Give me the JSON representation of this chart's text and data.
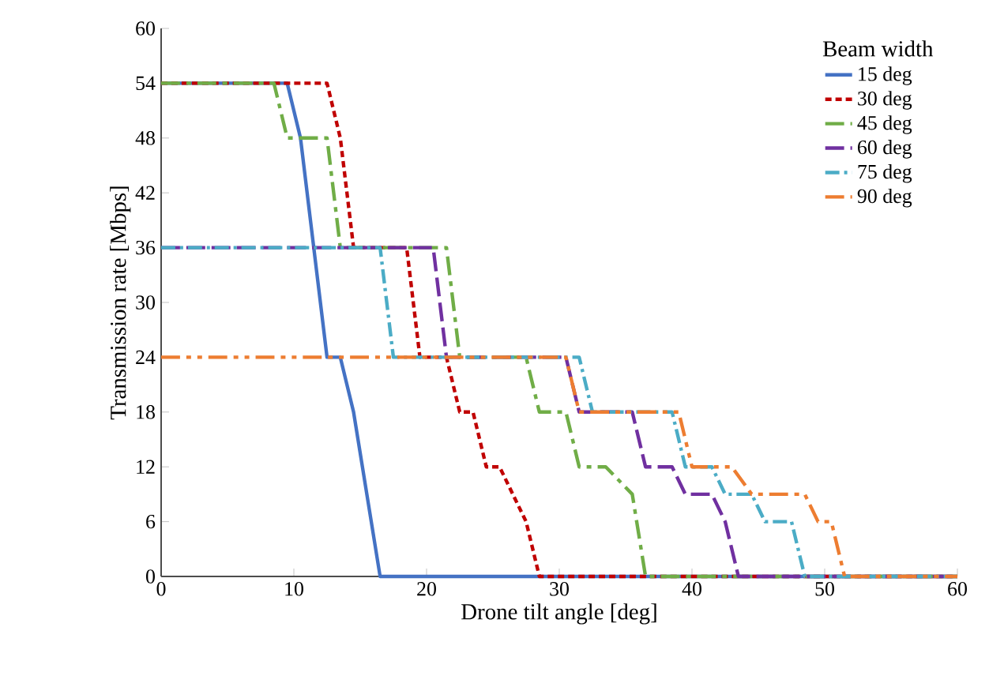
{
  "chart_data": {
    "type": "line",
    "xlabel": "Drone tilt angle  [deg]",
    "ylabel": "Transmission rate [Mbps]",
    "legend_title": "Beam width",
    "legend": "top right",
    "grid": false,
    "marker": "none",
    "xlim": [
      0,
      60
    ],
    "xticks": [
      0,
      10,
      20,
      30,
      40,
      50,
      60
    ],
    "ylim": [
      0,
      60
    ],
    "yticks": [
      0,
      6,
      12,
      18,
      24,
      30,
      36,
      42,
      48,
      54,
      60
    ],
    "series": [
      {
        "name": "15 deg",
        "color": "#4472c4",
        "line_style": "solid",
        "x": [
          0,
          9.5,
          10.5,
          12.5,
          13.5,
          14.5,
          16.5,
          60
        ],
        "values": [
          54,
          54,
          48,
          24,
          24,
          18,
          0,
          0
        ]
      },
      {
        "name": "30 deg",
        "color": "#c00000",
        "line_style": "dashed",
        "x": [
          0,
          12.5,
          13.5,
          14.5,
          18.5,
          19.5,
          21.5,
          22.5,
          23.5,
          24.5,
          25.5,
          27.5,
          28.5,
          60
        ],
        "values": [
          54,
          54,
          48,
          36,
          36,
          24,
          24,
          18,
          18,
          12,
          12,
          6,
          0,
          0
        ]
      },
      {
        "name": "45 deg",
        "color": "#70ad47",
        "line_style": "longdashdot",
        "x": [
          0,
          8.5,
          9.5,
          12.5,
          13.5,
          21.5,
          22.5,
          27.5,
          28.5,
          30.5,
          31.5,
          33.5,
          35.5,
          36.5,
          60
        ],
        "values": [
          54,
          54,
          48,
          48,
          36,
          36,
          24,
          24,
          18,
          18,
          12,
          12,
          9,
          0,
          0
        ]
      },
      {
        "name": "60 deg",
        "color": "#7030a0",
        "line_style": "longdash",
        "x": [
          0,
          20.5,
          21.5,
          30.5,
          31.5,
          35.5,
          36.5,
          38.5,
          39.5,
          41.5,
          42.5,
          43.5,
          60
        ],
        "values": [
          36,
          36,
          24,
          24,
          18,
          18,
          12,
          12,
          9,
          9,
          6,
          0,
          0
        ]
      },
      {
        "name": "75 deg",
        "color": "#4bacc6",
        "line_style": "dashdot",
        "x": [
          0,
          16.5,
          17.5,
          31.5,
          32.5,
          38.5,
          39.5,
          41.5,
          42.5,
          44.5,
          45.5,
          47.5,
          48.5,
          60
        ],
        "values": [
          36,
          36,
          24,
          24,
          18,
          18,
          12,
          12,
          9,
          9,
          6,
          6,
          0,
          0
        ]
      },
      {
        "name": "90 deg",
        "color": "#ed7d31",
        "line_style": "longdashdotdot",
        "x": [
          0,
          30.5,
          31.5,
          39,
          40,
          43,
          44.5,
          48.5,
          49.5,
          50.5,
          51.5,
          60
        ],
        "values": [
          24,
          24,
          18,
          18,
          12,
          12,
          9,
          9,
          6,
          6,
          0,
          0
        ]
      }
    ]
  }
}
